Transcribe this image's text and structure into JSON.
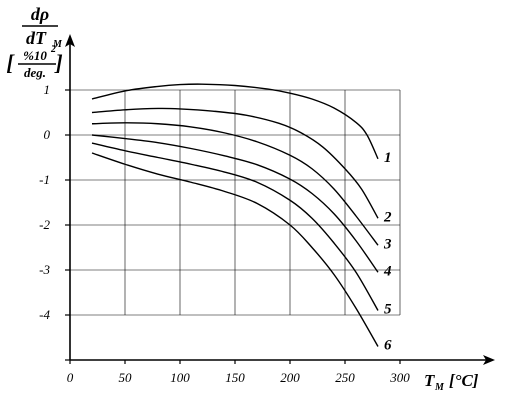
{
  "chart_data": {
    "type": "line",
    "ylabel": {
      "numerator_symbol": "dρ",
      "denominator_main": "dT",
      "denominator_sub": "M",
      "unit_left_bracket": "[",
      "unit_numerator": "%10",
      "unit_superscript": "2",
      "unit_denominator": "deg.",
      "unit_right_bracket": "]"
    },
    "xlabel": {
      "main": "T",
      "sub": "M",
      "unit": "[°C]"
    },
    "xlim": [
      0,
      300
    ],
    "ylim": [
      -5,
      1
    ],
    "x_ticks": [
      0,
      50,
      100,
      150,
      200,
      250,
      300
    ],
    "x_tick_labels": [
      "0",
      "50",
      "100",
      "150",
      "200",
      "250",
      "300"
    ],
    "y_ticks": [
      1,
      0,
      -1,
      -2,
      -3,
      -4
    ],
    "y_tick_labels": [
      "1",
      "0",
      "-1",
      "-2",
      "-3",
      "-4"
    ],
    "grid": true,
    "grid_x_range": [
      0,
      300
    ],
    "grid_y_range": [
      -4,
      1
    ],
    "series": [
      {
        "name": "1",
        "x": [
          20,
          50,
          80,
          100,
          120,
          150,
          180,
          200,
          220,
          240,
          260,
          270,
          280
        ],
        "y": [
          0.8,
          0.98,
          1.08,
          1.12,
          1.13,
          1.1,
          1.02,
          0.93,
          0.8,
          0.6,
          0.28,
          0.0,
          -0.53
        ]
      },
      {
        "name": "2",
        "x": [
          20,
          50,
          80,
          100,
          130,
          160,
          190,
          210,
          230,
          250,
          265,
          280
        ],
        "y": [
          0.5,
          0.56,
          0.59,
          0.58,
          0.53,
          0.44,
          0.26,
          0.05,
          -0.27,
          -0.75,
          -1.2,
          -1.85
        ]
      },
      {
        "name": "3",
        "x": [
          20,
          50,
          80,
          110,
          140,
          170,
          200,
          220,
          240,
          260,
          280
        ],
        "y": [
          0.25,
          0.27,
          0.25,
          0.18,
          0.05,
          -0.15,
          -0.45,
          -0.75,
          -1.2,
          -1.8,
          -2.45
        ]
      },
      {
        "name": "4",
        "x": [
          20,
          50,
          80,
          110,
          140,
          170,
          200,
          220,
          240,
          260,
          280
        ],
        "y": [
          0.0,
          -0.08,
          -0.17,
          -0.3,
          -0.46,
          -0.66,
          -0.98,
          -1.3,
          -1.75,
          -2.35,
          -3.05
        ]
      },
      {
        "name": "5",
        "x": [
          20,
          50,
          80,
          110,
          140,
          170,
          200,
          220,
          240,
          260,
          280
        ],
        "y": [
          -0.18,
          -0.35,
          -0.5,
          -0.65,
          -0.82,
          -1.05,
          -1.45,
          -1.85,
          -2.4,
          -3.05,
          -3.9
        ]
      },
      {
        "name": "6",
        "x": [
          20,
          50,
          80,
          110,
          140,
          170,
          200,
          220,
          240,
          260,
          280
        ],
        "y": [
          -0.4,
          -0.65,
          -0.87,
          -1.05,
          -1.25,
          -1.52,
          -2.0,
          -2.5,
          -3.1,
          -3.85,
          -4.7
        ]
      }
    ]
  }
}
